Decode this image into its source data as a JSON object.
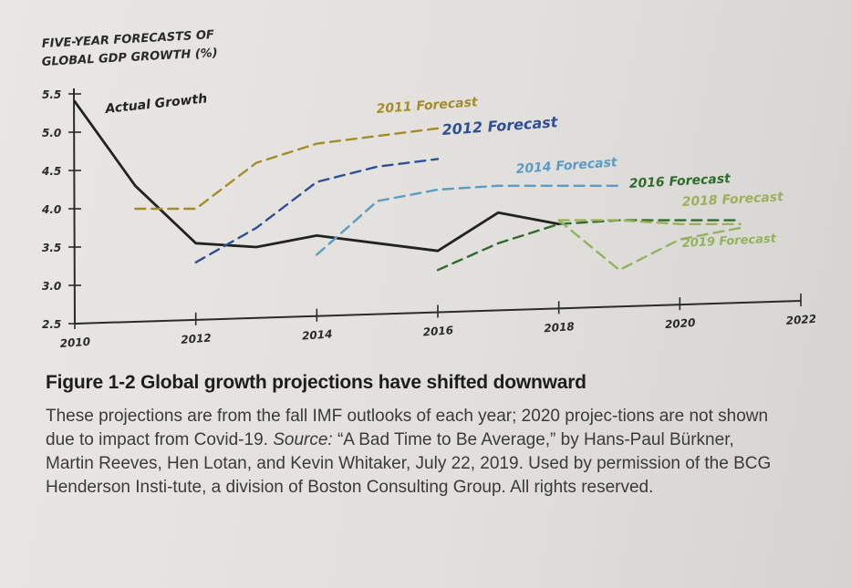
{
  "chart_data": {
    "type": "line",
    "title": "FIVE-YEAR FORECASTS OF GLOBAL GDP GROWTH (%)",
    "title_lines": [
      "FIVE-YEAR FORECASTS OF",
      "GLOBAL GDP GROWTH (%)"
    ],
    "xlabel": "",
    "ylabel": "",
    "xlim": [
      2010,
      2022
    ],
    "ylim": [
      2.5,
      5.5
    ],
    "x_ticks": [
      2010,
      2012,
      2014,
      2016,
      2018,
      2020,
      2022
    ],
    "x_tick_labels": [
      "2010",
      "2012",
      "2014",
      "2016",
      "2018",
      "2020",
      "2022"
    ],
    "y_ticks": [
      2.5,
      3.0,
      3.5,
      4.0,
      4.5,
      5.0,
      5.5
    ],
    "y_tick_labels": [
      "2.5",
      "3.0",
      "3.5",
      "4.0",
      "4.5",
      "5.0",
      "5.5"
    ],
    "grid": false,
    "series": [
      {
        "name": "Actual Growth",
        "color": "#222222",
        "style": "solid",
        "x": [
          2010,
          2011,
          2012,
          2013,
          2014,
          2015,
          2016,
          2017,
          2018
        ],
        "y": [
          5.4,
          4.3,
          3.55,
          3.5,
          3.65,
          3.55,
          3.45,
          3.95,
          3.8
        ]
      },
      {
        "name": "2011 Forecast",
        "color": "#a48c2a",
        "style": "dashed",
        "x": [
          2011,
          2012,
          2013,
          2014,
          2015,
          2016
        ],
        "y": [
          4.0,
          4.0,
          4.6,
          4.85,
          4.95,
          5.05
        ]
      },
      {
        "name": "2012 Forecast",
        "color": "#2e4f93",
        "style": "dashed",
        "x": [
          2012,
          2013,
          2014,
          2015,
          2016
        ],
        "y": [
          3.3,
          3.75,
          4.35,
          4.55,
          4.65
        ]
      },
      {
        "name": "2014 Forecast",
        "color": "#5b9bc4",
        "style": "dashed",
        "x": [
          2014,
          2015,
          2016,
          2017,
          2018,
          2019
        ],
        "y": [
          3.4,
          4.1,
          4.25,
          4.3,
          4.3,
          4.3
        ]
      },
      {
        "name": "2016 Forecast",
        "color": "#2f6b2c",
        "style": "dashed",
        "x": [
          2016,
          2017,
          2018,
          2019,
          2020,
          2021
        ],
        "y": [
          3.2,
          3.55,
          3.8,
          3.85,
          3.85,
          3.85
        ]
      },
      {
        "name": "2018 Forecast",
        "color": "#9caf5a",
        "style": "dashed",
        "x": [
          2018,
          2019,
          2020,
          2021
        ],
        "y": [
          3.85,
          3.85,
          3.8,
          3.8
        ]
      },
      {
        "name": "2019 Forecast",
        "color": "#93b25c",
        "style": "dashed",
        "x": [
          2018,
          2019,
          2020,
          2021
        ],
        "y": [
          3.85,
          3.2,
          3.6,
          3.75
        ]
      }
    ],
    "annotations": [
      {
        "text": "Actual Growth",
        "color": "#222222"
      },
      {
        "text": "2011 Forecast",
        "color": "#a48c2a"
      },
      {
        "text": "2012 Forecast",
        "color": "#2e4f93"
      },
      {
        "text": "2014 Forecast",
        "color": "#5b9bc4"
      },
      {
        "text": "2016 Forecast",
        "color": "#2f6b2c"
      },
      {
        "text": "2018 Forecast",
        "color": "#9caf5a"
      },
      {
        "text": "2019 Forecast",
        "color": "#93b25c"
      }
    ]
  },
  "caption": {
    "figure_title": "Figure 1-2 Global growth projections have shifted downward",
    "body_start": "These projections are from the fall IMF outlooks of each year; 2020 projec-tions are not shown due to impact from Covid-19. ",
    "source_label": "Source:",
    "body_end": " “A Bad Time to Be Average,” by Hans-Paul Bürkner, Martin Reeves, Hen Lotan, and Kevin Whitaker, July 22, 2019. Used by permission of the BCG Henderson Insti-tute, a division of Boston Consulting Group. All rights reserved."
  }
}
